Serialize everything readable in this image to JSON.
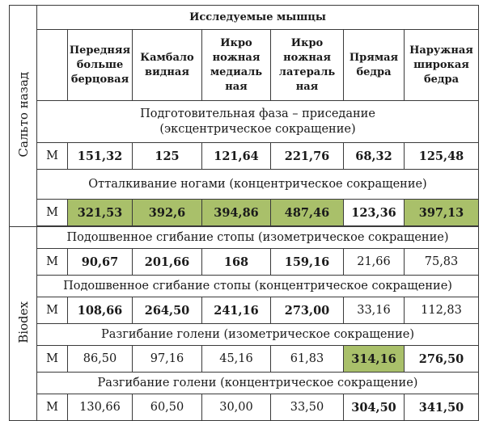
{
  "group_labels": {
    "salto": "Сальто назад",
    "biodex": "Biodex"
  },
  "header": {
    "title": "Исследуемые мышцы",
    "columns": [
      "Передняя большеберцовая",
      "Камбаловидная",
      "Икроножная медиальная",
      "Икроножная латеральная",
      "Прямая бедра",
      "Наружная широкая бедра"
    ]
  },
  "sections": [
    {
      "phase": "Подготовительная фаза – приседание (эксцентрическое сокращение)",
      "row_label": "M",
      "values": [
        "151,32",
        "125",
        "121,64",
        "221,76",
        "68,32",
        "125,48"
      ],
      "bold": [
        true,
        true,
        true,
        true,
        true,
        true
      ],
      "highlight": [
        false,
        false,
        false,
        false,
        false,
        false
      ]
    },
    {
      "phase": "Отталкивание ногами (концентрическое сокращение)",
      "row_label": "M",
      "values": [
        "321,53",
        "392,6",
        "394,86",
        "487,46",
        "123,36",
        "397,13"
      ],
      "bold": [
        true,
        true,
        true,
        true,
        true,
        true
      ],
      "highlight": [
        true,
        true,
        true,
        true,
        false,
        true
      ]
    },
    {
      "phase": "Подошвенное сгибание стопы (изометрическое сокращение)",
      "row_label": "M",
      "values": [
        "90,67",
        "201,66",
        "168",
        "159,16",
        "21,66",
        "75,83"
      ],
      "bold": [
        true,
        true,
        true,
        true,
        false,
        false
      ],
      "highlight": [
        false,
        false,
        false,
        false,
        false,
        false
      ]
    },
    {
      "phase": "Подошвенное сгибание стопы (концентрическое сокращение)",
      "row_label": "M",
      "values": [
        "108,66",
        "264,50",
        "241,16",
        "273,00",
        "33,16",
        "112,83"
      ],
      "bold": [
        true,
        true,
        true,
        true,
        false,
        false
      ],
      "highlight": [
        false,
        false,
        false,
        false,
        false,
        false
      ]
    },
    {
      "phase": "Разгибание голени (изометрическое сокращение)",
      "row_label": "M",
      "values": [
        "86,50",
        "97,16",
        "45,16",
        "61,83",
        "314,16",
        "276,50"
      ],
      "bold": [
        false,
        false,
        false,
        false,
        true,
        true
      ],
      "highlight": [
        false,
        false,
        false,
        false,
        true,
        false
      ]
    },
    {
      "phase": "Разгибание голени (концентрическое сокращение)",
      "row_label": "M",
      "values": [
        "130,66",
        "60,50",
        "30,00",
        "33,50",
        "304,50",
        "341,50"
      ],
      "bold": [
        false,
        false,
        false,
        false,
        true,
        true
      ],
      "highlight": [
        false,
        false,
        false,
        false,
        false,
        false
      ]
    }
  ],
  "colors": {
    "highlight": "#a9c06a",
    "border": "#3a3a3a",
    "text": "#1a1a1a"
  }
}
